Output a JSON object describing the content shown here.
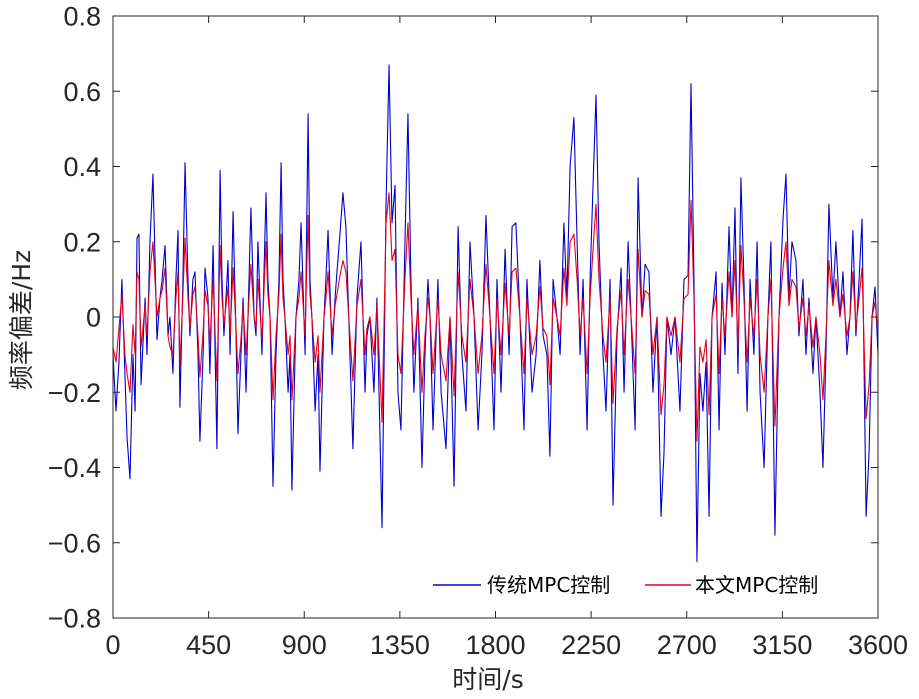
{
  "chart_data": {
    "type": "line",
    "title": "",
    "xlabel": "时间/s",
    "ylabel": "频率偏差/Hz",
    "xlim": [
      0,
      3600
    ],
    "ylim": [
      -0.8,
      0.8
    ],
    "xticks": [
      0,
      450,
      900,
      1350,
      1800,
      2250,
      2700,
      3150,
      3600
    ],
    "xtick_labels": [
      "0",
      "450",
      "900",
      "1350",
      "1800",
      "2250",
      "2700",
      "3150",
      "3600"
    ],
    "yticks": [
      0.8,
      0.6,
      0.4,
      0.2,
      0,
      -0.2,
      -0.4,
      -0.6,
      -0.8
    ],
    "ytick_labels": [
      "0.8",
      "0.6",
      "0.4",
      "0.2",
      "0",
      "−0.2",
      "−0.4",
      "−0.6",
      "−0.8"
    ],
    "grid": false,
    "legend_location": "bottom-right",
    "x": [
      0,
      14,
      28,
      42,
      56,
      66,
      80,
      94,
      104,
      113,
      122,
      132,
      151,
      160,
      174,
      188,
      207,
      221,
      231,
      245,
      259,
      268,
      282,
      296,
      306,
      315,
      329,
      339,
      353,
      362,
      376,
      386,
      400,
      409,
      424,
      433,
      447,
      456,
      471,
      489,
      504,
      513,
      522,
      541,
      551,
      565,
      579,
      588,
      602,
      612,
      626,
      640,
      649,
      664,
      673,
      682,
      701,
      720,
      729,
      739,
      753,
      767,
      781,
      791,
      800,
      809,
      824,
      833,
      842,
      861,
      875,
      885,
      904,
      918,
      927,
      936,
      951,
      965,
      974,
      993,
      1002,
      1012,
      1031,
      1045,
      1054,
      1068,
      1082,
      1096,
      1115,
      1129,
      1148,
      1167,
      1186,
      1195,
      1209,
      1228,
      1242,
      1266,
      1285,
      1299,
      1313,
      1327,
      1341,
      1355,
      1374,
      1388,
      1402,
      1416,
      1435,
      1454,
      1468,
      1482,
      1492,
      1506,
      1529,
      1544,
      1567,
      1586,
      1605,
      1624,
      1642,
      1661,
      1680,
      1699,
      1718,
      1736,
      1755,
      1774,
      1793,
      1807,
      1826,
      1845,
      1864,
      1878,
      1896,
      1915,
      1934,
      1948,
      1972,
      1991,
      2009,
      2024,
      2042,
      2056,
      2071,
      2089,
      2104,
      2122,
      2136,
      2151,
      2169,
      2184,
      2198,
      2212,
      2231,
      2245,
      2259,
      2273,
      2287,
      2306,
      2320,
      2339,
      2353,
      2372,
      2391,
      2405,
      2424,
      2438,
      2457,
      2471,
      2489,
      2504,
      2522,
      2541,
      2560,
      2579,
      2593,
      2607,
      2626,
      2645,
      2668,
      2687,
      2706,
      2720,
      2734,
      2748,
      2762,
      2776,
      2791,
      2805,
      2819,
      2838,
      2852,
      2866,
      2880,
      2899,
      2913,
      2927,
      2941,
      2955,
      2969,
      2984,
      2998,
      3016,
      3031,
      3045,
      3064,
      3082,
      3096,
      3115,
      3134,
      3153,
      3167,
      3181,
      3195,
      3214,
      3228,
      3247,
      3261,
      3275,
      3294,
      3308,
      3327,
      3341,
      3355,
      3369,
      3388,
      3402,
      3421,
      3435,
      3454,
      3468,
      3482,
      3496,
      3511,
      3525,
      3544,
      3558,
      3572,
      3586,
      3600
    ],
    "series": [
      {
        "name": "传统MPC控制",
        "color": "#0000cd",
        "values": [
          -0.1,
          -0.25,
          -0.12,
          0.1,
          -0.15,
          -0.32,
          -0.43,
          -0.1,
          -0.25,
          0.21,
          0.22,
          -0.18,
          0.05,
          -0.1,
          0.2,
          0.38,
          -0.06,
          0.05,
          0.1,
          0.19,
          -0.05,
          0.0,
          -0.15,
          0.1,
          0.23,
          -0.24,
          0.1,
          0.41,
          0.1,
          -0.05,
          0.1,
          0.12,
          -0.1,
          -0.33,
          -0.1,
          0.13,
          0.05,
          -0.15,
          0.19,
          -0.35,
          0.39,
          0.1,
          -0.05,
          0.15,
          -0.1,
          0.28,
          -0.05,
          -0.31,
          -0.1,
          0.05,
          -0.2,
          0.1,
          0.29,
          0.0,
          -0.05,
          0.2,
          -0.1,
          0.33,
          0.1,
          0.0,
          -0.45,
          -0.1,
          0.1,
          0.41,
          0.1,
          0.0,
          -0.2,
          -0.1,
          -0.46,
          0.0,
          0.1,
          0.25,
          -0.1,
          0.54,
          0.1,
          0.0,
          -0.25,
          -0.1,
          -0.41,
          0.0,
          0.1,
          0.23,
          -0.1,
          0.05,
          0.12,
          0.22,
          0.33,
          0.24,
          -0.1,
          -0.35,
          0.05,
          0.2,
          -0.2,
          -0.05,
          0.0,
          -0.2,
          0.05,
          -0.56,
          0.3,
          0.67,
          0.25,
          0.35,
          -0.2,
          -0.3,
          0.2,
          0.54,
          0.1,
          -0.2,
          0.05,
          -0.4,
          -0.1,
          0.1,
          0.0,
          -0.3,
          0.1,
          -0.2,
          -0.35,
          0.0,
          -0.45,
          0.24,
          -0.1,
          -0.25,
          0.2,
          0.0,
          -0.3,
          -0.1,
          0.27,
          0.0,
          -0.3,
          0.1,
          -0.2,
          0.18,
          -0.1,
          0.24,
          0.25,
          0.0,
          -0.3,
          0.1,
          -0.2,
          -0.1,
          0.15,
          -0.05,
          -0.1,
          -0.37,
          0.1,
          0.0,
          -0.1,
          0.25,
          0.05,
          0.4,
          0.53,
          0.2,
          -0.1,
          0.1,
          -0.3,
          0.1,
          0.35,
          0.59,
          0.2,
          -0.1,
          -0.25,
          0.1,
          -0.5,
          -0.05,
          0.13,
          -0.2,
          0.2,
          0.0,
          -0.3,
          0.37,
          0.0,
          0.14,
          0.12,
          -0.2,
          0.0,
          -0.53,
          -0.36,
          0.0,
          -0.1,
          0.0,
          -0.25,
          0.1,
          0.11,
          0.62,
          0.1,
          -0.65,
          -0.15,
          -0.25,
          -0.12,
          -0.53,
          0.0,
          0.12,
          -0.3,
          0.09,
          -0.1,
          0.24,
          0.0,
          0.29,
          -0.15,
          0.37,
          0.1,
          -0.25,
          0.1,
          -0.1,
          0.2,
          -0.2,
          -0.4,
          0.0,
          0.2,
          -0.58,
          0.0,
          0.26,
          0.38,
          0.05,
          0.2,
          0.15,
          -0.05,
          0.1,
          -0.1,
          0.05,
          -0.15,
          0.0,
          -0.2,
          -0.4,
          -0.1,
          0.3,
          0.05,
          0.2,
          0.0,
          0.12,
          -0.1,
          0.0,
          0.23,
          -0.05,
          0.1,
          0.26,
          -0.53,
          -0.36,
          0.0,
          0.08,
          -0.1
        ]
      },
      {
        "name": "本文MPC控制",
        "color": "#e3001b",
        "values": [
          -0.08,
          -0.12,
          -0.03,
          0.06,
          -0.1,
          -0.15,
          -0.2,
          -0.02,
          -0.1,
          0.12,
          0.1,
          -0.08,
          0.03,
          -0.05,
          0.12,
          0.2,
          0.0,
          0.05,
          0.07,
          0.13,
          -0.05,
          -0.08,
          -0.1,
          0.05,
          0.12,
          -0.13,
          0.06,
          0.21,
          0.05,
          -0.03,
          0.06,
          0.08,
          -0.05,
          -0.16,
          -0.04,
          0.07,
          0.03,
          -0.07,
          0.1,
          -0.17,
          0.19,
          0.05,
          -0.02,
          0.08,
          -0.05,
          0.13,
          -0.03,
          -0.15,
          -0.06,
          0.03,
          -0.1,
          0.05,
          0.14,
          0.0,
          -0.03,
          0.1,
          -0.06,
          0.2,
          0.06,
          0.0,
          -0.22,
          -0.05,
          0.06,
          0.22,
          0.05,
          0.0,
          -0.1,
          -0.05,
          -0.22,
          0.0,
          0.05,
          0.12,
          -0.05,
          0.27,
          0.06,
          0.0,
          -0.12,
          -0.05,
          -0.2,
          0.0,
          0.05,
          0.12,
          -0.05,
          0.03,
          0.06,
          0.11,
          0.15,
          0.12,
          -0.05,
          -0.17,
          0.03,
          0.1,
          -0.1,
          -0.03,
          0.0,
          -0.1,
          0.03,
          -0.28,
          0.25,
          0.33,
          0.15,
          0.18,
          -0.1,
          -0.15,
          0.1,
          0.25,
          0.05,
          -0.1,
          0.03,
          -0.2,
          -0.05,
          0.05,
          0.0,
          -0.15,
          0.05,
          -0.1,
          -0.17,
          0.0,
          -0.21,
          0.12,
          -0.05,
          -0.12,
          0.1,
          0.0,
          -0.15,
          -0.05,
          0.14,
          0.0,
          -0.15,
          0.05,
          -0.1,
          0.09,
          -0.05,
          0.12,
          0.13,
          0.0,
          -0.15,
          0.05,
          -0.1,
          -0.05,
          0.08,
          -0.03,
          -0.05,
          -0.18,
          0.05,
          0.0,
          -0.05,
          0.13,
          0.03,
          0.2,
          0.22,
          0.1,
          -0.05,
          0.05,
          -0.15,
          0.05,
          0.18,
          0.3,
          0.1,
          -0.05,
          -0.12,
          0.05,
          -0.23,
          -0.03,
          0.07,
          -0.1,
          0.1,
          0.0,
          -0.15,
          0.18,
          0.0,
          0.07,
          0.06,
          -0.1,
          0.0,
          -0.26,
          -0.18,
          0.0,
          -0.05,
          0.0,
          -0.12,
          0.05,
          0.06,
          0.31,
          0.05,
          -0.33,
          -0.08,
          -0.12,
          -0.06,
          -0.26,
          0.0,
          0.06,
          -0.15,
          0.05,
          -0.05,
          0.12,
          0.0,
          0.15,
          -0.08,
          0.19,
          0.05,
          -0.12,
          0.05,
          -0.05,
          0.1,
          -0.1,
          -0.2,
          0.0,
          0.1,
          -0.29,
          0.0,
          0.13,
          0.2,
          0.03,
          0.1,
          0.08,
          -0.03,
          0.05,
          -0.05,
          0.03,
          -0.08,
          0.0,
          -0.1,
          -0.22,
          -0.05,
          0.15,
          0.03,
          0.1,
          0.0,
          0.06,
          -0.05,
          0.0,
          0.12,
          -0.03,
          0.05,
          0.13,
          -0.27,
          -0.18,
          0.0,
          0.04,
          -0.04
        ]
      }
    ]
  }
}
